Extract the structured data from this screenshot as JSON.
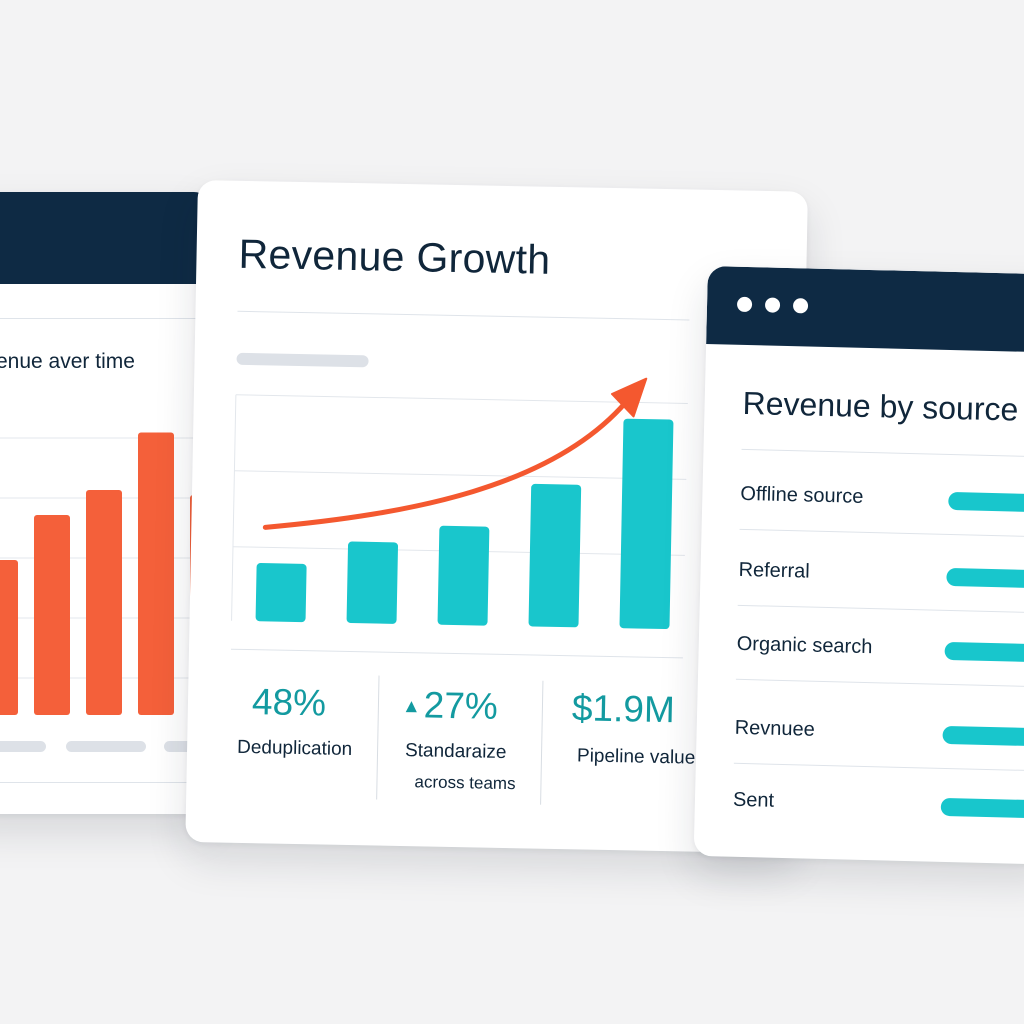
{
  "left_card": {
    "title": "enue aver time",
    "accent_color": "#f4603a",
    "chart_data": {
      "type": "bar",
      "title": "enue aver time",
      "categories": [
        "",
        "",
        "",
        "",
        ""
      ],
      "values": [
        62,
        80,
        90,
        113,
        88
      ],
      "ylim": [
        0,
        120
      ],
      "grid": true
    }
  },
  "center_card": {
    "title": "Revenue Growth",
    "accent_color": "#19c6cc",
    "trend_color": "#f4582f",
    "chart_data": {
      "type": "bar",
      "title": "Revenue Growth",
      "categories": [
        "",
        "",
        "",
        "",
        ""
      ],
      "values": [
        20,
        28,
        34,
        49,
        72
      ],
      "ylim": [
        0,
        90
      ],
      "grid": true,
      "annotations": [
        "upward trend arrow"
      ]
    },
    "kpis": [
      {
        "value": "48%",
        "label": "Deduplication",
        "sub": ""
      },
      {
        "value": "27%",
        "label": "Standaraize",
        "sub": "across teams",
        "icon": "triangle-up-icon"
      },
      {
        "value": "$1.9M",
        "label": "Pipeline value",
        "sub": ""
      }
    ]
  },
  "right_card": {
    "title": "Revenue by source",
    "rows": [
      {
        "label": "Offline source"
      },
      {
        "label": "Referral"
      },
      {
        "label": "Organic search"
      },
      {
        "label": "Revnuee"
      },
      {
        "label": "Sent"
      }
    ]
  }
}
